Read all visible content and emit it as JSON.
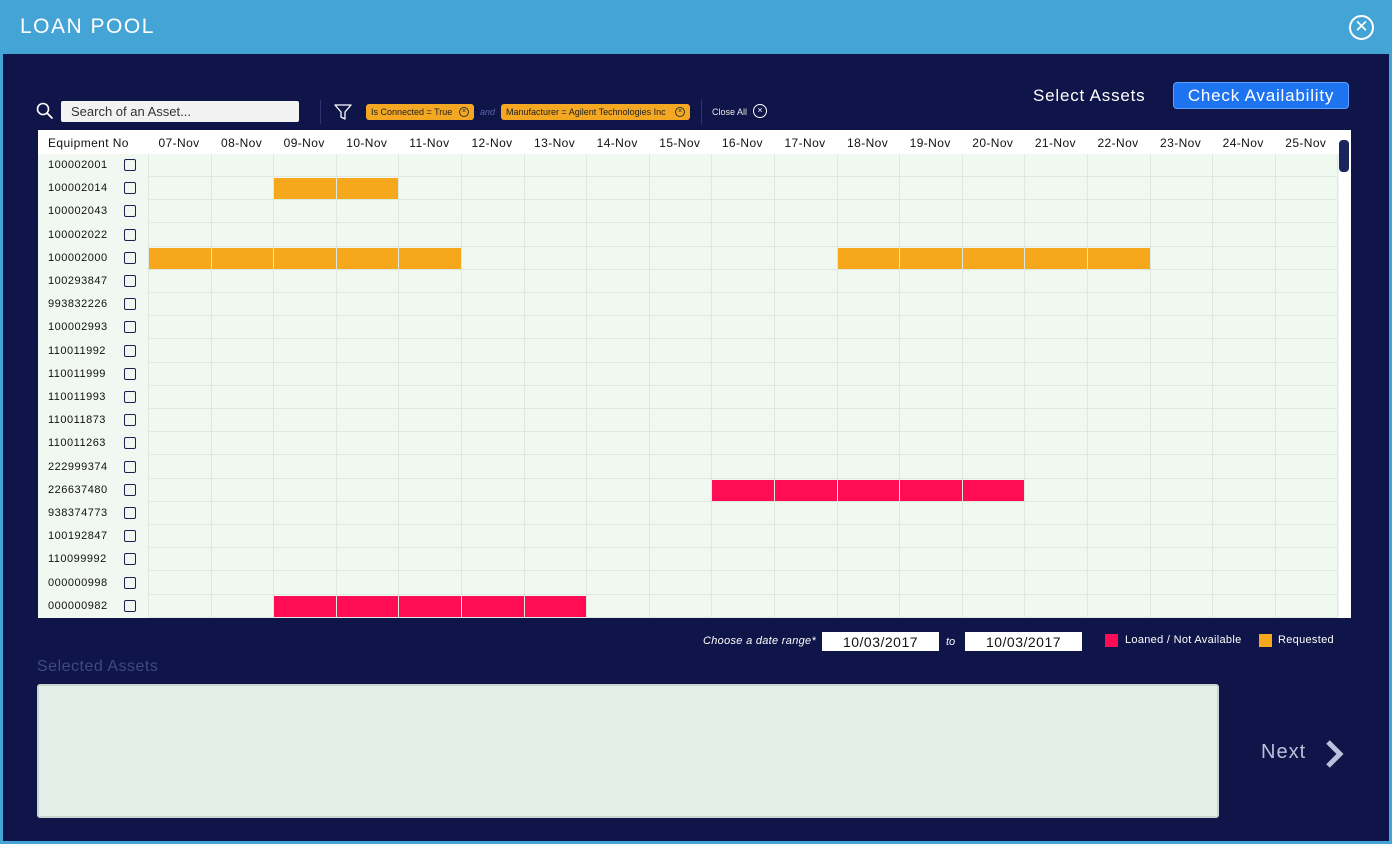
{
  "window": {
    "title": "LOAN POOL",
    "close_icon": "close-circle-icon"
  },
  "toolbar": {
    "search_placeholder": "Search of an Asset...",
    "filters": [
      {
        "label": "Is Connected = True"
      },
      {
        "label": "Manufacturer = Agilent Technologies Inc"
      }
    ],
    "connector": "and",
    "close_all": "Close All",
    "select_assets": "Select Assets",
    "check_availability": "Check Availability"
  },
  "grid": {
    "equipment_header": "Equipment No",
    "dates": [
      "07-Nov",
      "08-Nov",
      "09-Nov",
      "10-Nov",
      "11-Nov",
      "12-Nov",
      "13-Nov",
      "14-Nov",
      "15-Nov",
      "16-Nov",
      "17-Nov",
      "18-Nov",
      "19-Nov",
      "20-Nov",
      "21-Nov",
      "22-Nov",
      "23-Nov",
      "24-Nov",
      "25-Nov"
    ],
    "rows": [
      {
        "equipment_no": "100002001",
        "bookings": []
      },
      {
        "equipment_no": "100002014",
        "bookings": [
          {
            "status": "requested",
            "start": "09-Nov",
            "end": "10-Nov"
          }
        ]
      },
      {
        "equipment_no": "100002043",
        "bookings": []
      },
      {
        "equipment_no": "100002022",
        "bookings": []
      },
      {
        "equipment_no": "100002000",
        "bookings": [
          {
            "status": "requested",
            "start": "07-Nov",
            "end": "11-Nov"
          },
          {
            "status": "requested",
            "start": "18-Nov",
            "end": "22-Nov"
          }
        ]
      },
      {
        "equipment_no": "100293847",
        "bookings": []
      },
      {
        "equipment_no": "993832226",
        "bookings": []
      },
      {
        "equipment_no": "100002993",
        "bookings": []
      },
      {
        "equipment_no": "110011992",
        "bookings": []
      },
      {
        "equipment_no": "110011999",
        "bookings": []
      },
      {
        "equipment_no": "110011993",
        "bookings": []
      },
      {
        "equipment_no": "110011873",
        "bookings": []
      },
      {
        "equipment_no": "110011263",
        "bookings": []
      },
      {
        "equipment_no": "222999374",
        "bookings": []
      },
      {
        "equipment_no": "226637480",
        "bookings": [
          {
            "status": "loaned",
            "start": "16-Nov",
            "end": "20-Nov"
          }
        ]
      },
      {
        "equipment_no": "938374773",
        "bookings": []
      },
      {
        "equipment_no": "100192847",
        "bookings": []
      },
      {
        "equipment_no": "110099992",
        "bookings": []
      },
      {
        "equipment_no": "000000998",
        "bookings": []
      },
      {
        "equipment_no": "000000982",
        "bookings": [
          {
            "status": "loaned",
            "start": "09-Nov",
            "end": "13-Nov"
          }
        ]
      }
    ]
  },
  "date_range": {
    "label": "Choose a date range*",
    "from": "10/03/2017",
    "to_label": "to",
    "to": "10/03/2017"
  },
  "legend": [
    {
      "label": "Loaned / Not Available",
      "color": "#ff0c55"
    },
    {
      "label": "Requested",
      "color": "#f7a71c"
    }
  ],
  "selected_assets": {
    "label": "Selected Assets"
  },
  "next": {
    "label": "Next"
  },
  "colors": {
    "background": "#0f1548",
    "titlebar": "#45a4d6",
    "accent_button": "#1e74f0",
    "requested": "#f7a71c",
    "loaned": "#ff0c55"
  }
}
